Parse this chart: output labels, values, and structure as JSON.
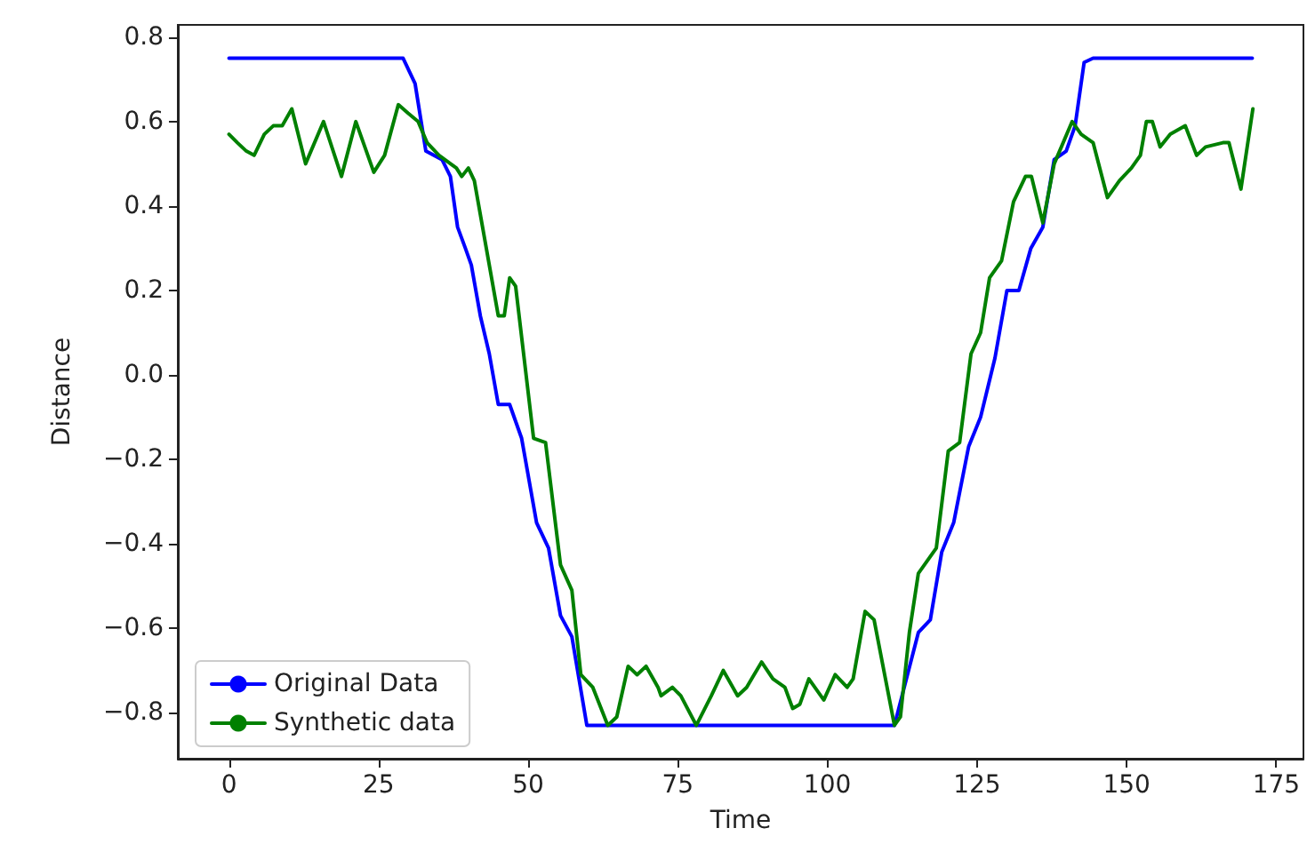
{
  "chart_data": {
    "type": "line",
    "xlabel": "Time",
    "ylabel": "Distance",
    "xlim": [
      -8.55,
      179.55
    ],
    "xticks": [
      0,
      25,
      50,
      75,
      100,
      125,
      150,
      175
    ],
    "ylim": [
      -0.909,
      0.829
    ],
    "yticks": [
      {
        "value": -0.8,
        "label": "−0.8"
      },
      {
        "value": -0.6,
        "label": "−0.6"
      },
      {
        "value": -0.4,
        "label": "−0.4"
      },
      {
        "value": -0.2,
        "label": "−0.2"
      },
      {
        "value": 0,
        "label": "0.0"
      },
      0.2,
      0.4,
      0.6,
      0.8
    ],
    "grid": false,
    "legend": "bottom left",
    "marker": "none",
    "line_style": "solid",
    "series": [
      {
        "name": "Original Data",
        "color": "#0000ff",
        "x": [
          0,
          29.1,
          31.1,
          32.9,
          35.6,
          37,
          38.2,
          39.5,
          40.5,
          42,
          43.5,
          45,
          46.9,
          48.9,
          51.4,
          53.4,
          55.4,
          57.3,
          59.8,
          111.2,
          115.2,
          117.2,
          119.1,
          121.1,
          123.6,
          125.6,
          128,
          130,
          132,
          134,
          136,
          137.9,
          139.9,
          141.4,
          142.9,
          144.4,
          171
        ],
        "values": [
          0.75,
          0.75,
          0.69,
          0.53,
          0.51,
          0.47,
          0.35,
          0.3,
          0.26,
          0.14,
          0.05,
          -0.07,
          -0.07,
          -0.15,
          -0.35,
          -0.41,
          -0.57,
          -0.62,
          -0.83,
          -0.83,
          -0.61,
          -0.58,
          -0.42,
          -0.35,
          -0.17,
          -0.1,
          0.04,
          0.2,
          0.2,
          0.3,
          0.35,
          0.51,
          0.53,
          0.59,
          0.74,
          0.75,
          0.75
        ]
      },
      {
        "name": "Synthetic data",
        "color": "#008000",
        "x": [
          0,
          1.4,
          2.9,
          4.2,
          5.9,
          7.4,
          8.9,
          10.5,
          12.8,
          15.8,
          18.8,
          21.2,
          24.2,
          26,
          28.3,
          29.9,
          31.6,
          33.1,
          35.1,
          38,
          38.9,
          40,
          41,
          43,
          45,
          46,
          46.9,
          47.9,
          50.9,
          52.9,
          55.4,
          57.3,
          58.8,
          60.8,
          63.3,
          64.8,
          66.7,
          68.2,
          69.7,
          71.7,
          72.2,
          74.1,
          75.5,
          78.1,
          80.6,
          82.6,
          85,
          86.5,
          89,
          90.9,
          92.9,
          94.2,
          95.4,
          96.9,
          99.4,
          101.3,
          103.3,
          104.3,
          106.3,
          107.8,
          111.2,
          112.2,
          113.7,
          115.2,
          116.7,
          118.2,
          120.2,
          122.1,
          124,
          125.6,
          127.1,
          129.1,
          131.1,
          133.1,
          134.1,
          136,
          137.9,
          140.9,
          142.4,
          144.4,
          146.8,
          148.8,
          150.8,
          152.3,
          153.3,
          154.3,
          155.6,
          157.3,
          159.8,
          161.7,
          163.2,
          166.1,
          167.1,
          169.1,
          171.1
        ],
        "values": [
          0.57,
          0.55,
          0.53,
          0.52,
          0.57,
          0.59,
          0.59,
          0.63,
          0.5,
          0.6,
          0.47,
          0.6,
          0.48,
          0.52,
          0.64,
          0.62,
          0.6,
          0.55,
          0.52,
          0.49,
          0.47,
          0.49,
          0.46,
          0.3,
          0.14,
          0.14,
          0.23,
          0.21,
          -0.15,
          -0.16,
          -0.45,
          -0.51,
          -0.71,
          -0.74,
          -0.83,
          -0.81,
          -0.69,
          -0.71,
          -0.69,
          -0.74,
          -0.76,
          -0.74,
          -0.76,
          -0.83,
          -0.76,
          -0.7,
          -0.76,
          -0.74,
          -0.68,
          -0.72,
          -0.74,
          -0.79,
          -0.78,
          -0.72,
          -0.77,
          -0.71,
          -0.74,
          -0.72,
          -0.56,
          -0.58,
          -0.83,
          -0.81,
          -0.61,
          -0.47,
          -0.44,
          -0.41,
          -0.18,
          -0.16,
          0.05,
          0.1,
          0.23,
          0.27,
          0.41,
          0.47,
          0.47,
          0.36,
          0.5,
          0.6,
          0.57,
          0.55,
          0.42,
          0.46,
          0.49,
          0.52,
          0.6,
          0.6,
          0.54,
          0.57,
          0.59,
          0.52,
          0.54,
          0.55,
          0.55,
          0.44,
          0.63
        ]
      }
    ]
  }
}
